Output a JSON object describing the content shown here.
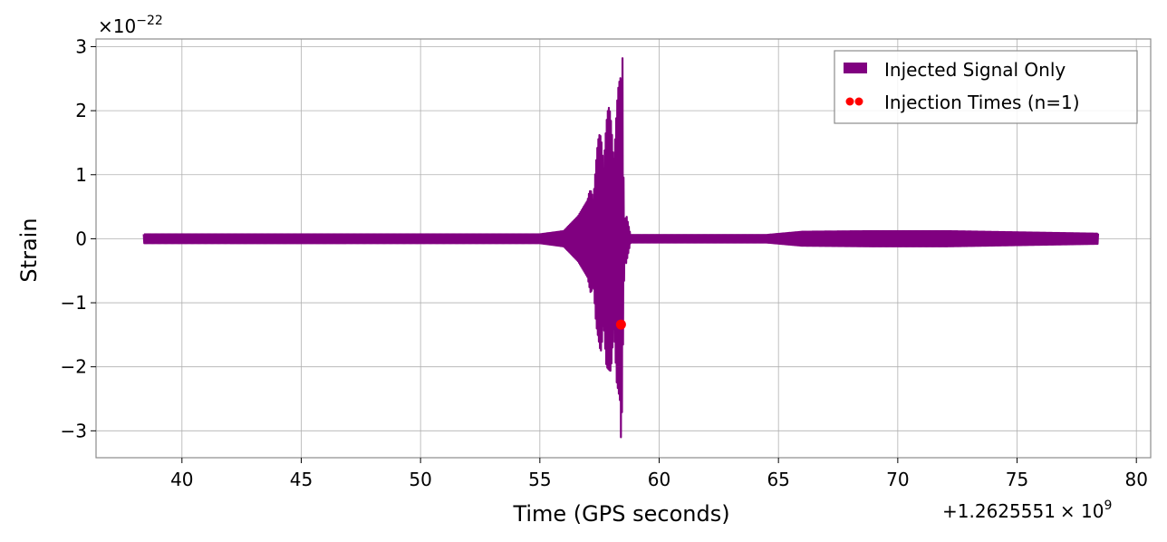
{
  "chart_data": {
    "type": "line",
    "title": "",
    "xlabel": "Time (GPS seconds)",
    "ylabel": "Strain",
    "x_offset_label": "+1.2625551",
    "y_scale_label": "×10",
    "y_scale_exponent": "−22",
    "x_offset_exponent": "9",
    "xlim": [
      36.4,
      80.6
    ],
    "ylim": [
      -3.42,
      3.12
    ],
    "xticks": [
      40,
      45,
      50,
      55,
      60,
      65,
      70,
      75,
      80
    ],
    "xtick_labels": [
      "40",
      "45",
      "50",
      "55",
      "60",
      "65",
      "70",
      "75",
      "80"
    ],
    "yticks": [
      3,
      2,
      1,
      0,
      -1,
      -2,
      -3
    ],
    "ytick_labels": [
      "3",
      "2",
      "1",
      "0",
      "−1",
      "−2",
      "−3"
    ],
    "grid": true,
    "legend_position": "top-right",
    "series": [
      {
        "name": "Injected Signal Only",
        "kind": "line",
        "color": "#800080",
        "envelope": [
          {
            "t": 38.4,
            "amp": 0.07
          },
          {
            "t": 55.0,
            "amp": 0.07
          },
          {
            "t": 56.0,
            "amp": 0.12
          },
          {
            "t": 56.6,
            "amp": 0.35
          },
          {
            "t": 57.0,
            "amp": 0.6
          },
          {
            "t": 57.3,
            "amp": 1.2
          },
          {
            "t": 57.6,
            "amp": 1.9
          },
          {
            "t": 57.9,
            "amp": 2.05
          },
          {
            "t": 58.15,
            "amp": 2.1
          },
          {
            "t": 58.35,
            "amp": 2.5
          },
          {
            "t": 58.45,
            "amp": 3.0
          },
          {
            "t": 58.55,
            "amp": 0.5
          },
          {
            "t": 58.8,
            "amp": 0.06
          },
          {
            "t": 64.5,
            "amp": 0.06
          },
          {
            "t": 66.0,
            "amp": 0.11
          },
          {
            "t": 69.0,
            "amp": 0.12
          },
          {
            "t": 72.0,
            "amp": 0.12
          },
          {
            "t": 78.4,
            "amp": 0.08
          }
        ]
      },
      {
        "name": "Injection Times (n=1)",
        "kind": "scatter",
        "color": "#ff0000",
        "points": [
          {
            "x": 58.4,
            "y": -1.34
          }
        ]
      }
    ]
  }
}
